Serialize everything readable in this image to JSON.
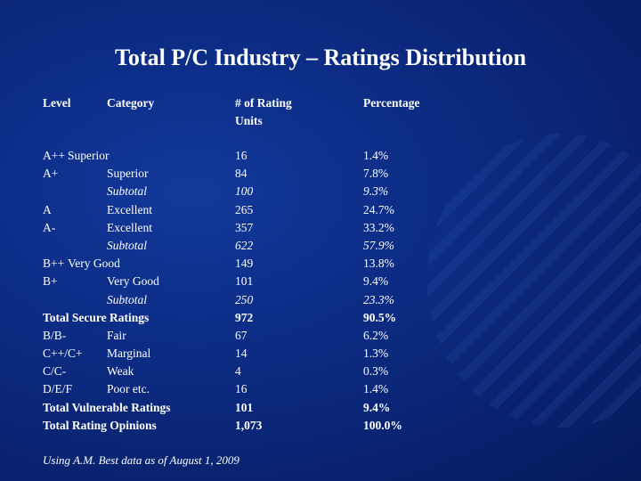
{
  "title": "Total P/C Industry – Ratings Distribution",
  "headers": {
    "level": "Level",
    "category": "Category",
    "units_line1": "# of Rating",
    "units_line2": "Units",
    "percentage": "Percentage"
  },
  "rows": [
    {
      "level": "A++",
      "category": "Superior",
      "units": "16",
      "pct": "1.4%"
    },
    {
      "level": "A+",
      "category": "Superior",
      "units": "84",
      "pct": "7.8%"
    },
    {
      "level": "",
      "category": "Subtotal",
      "units": "100",
      "pct": "9.3%"
    },
    {
      "level": "A",
      "category": "Excellent",
      "units": "265",
      "pct": "24.7%"
    },
    {
      "level": "A-",
      "category": "Excellent",
      "units": "357",
      "pct": "33.2%"
    },
    {
      "level": "",
      "category": "Subtotal",
      "units": "622",
      "pct": "57.9%"
    },
    {
      "level": "B++",
      "category": "Very Good",
      "units": "149",
      "pct": "13.8%"
    },
    {
      "level": "B+",
      "category": "Very Good",
      "units": "101",
      "pct": "9.4%"
    },
    {
      "level": "",
      "category": "Subtotal",
      "units": "250",
      "pct": "23.3%"
    },
    {
      "level": "Total Secure Ratings",
      "category": "",
      "units": "972",
      "pct": "90.5%"
    },
    {
      "level": "B/B-",
      "category": "Fair",
      "units": "67",
      "pct": "6.2%"
    },
    {
      "level": "C++/C+",
      "category": "Marginal",
      "units": "14",
      "pct": "1.3%"
    },
    {
      "level": "C/C-",
      "category": "Weak",
      "units": "4",
      "pct": "0.3%"
    },
    {
      "level": "D/E/F",
      "category": "Poor etc.",
      "units": "16",
      "pct": "1.4%"
    },
    {
      "level": "Total Vulnerable Ratings",
      "category": "",
      "units": "101",
      "pct": "9.4%"
    },
    {
      "level": "Total Rating Opinions",
      "category": "",
      "units": "1,073",
      "pct": "100.0%"
    }
  ],
  "footnote": "Using A.M. Best data as of August 1, 2009"
}
